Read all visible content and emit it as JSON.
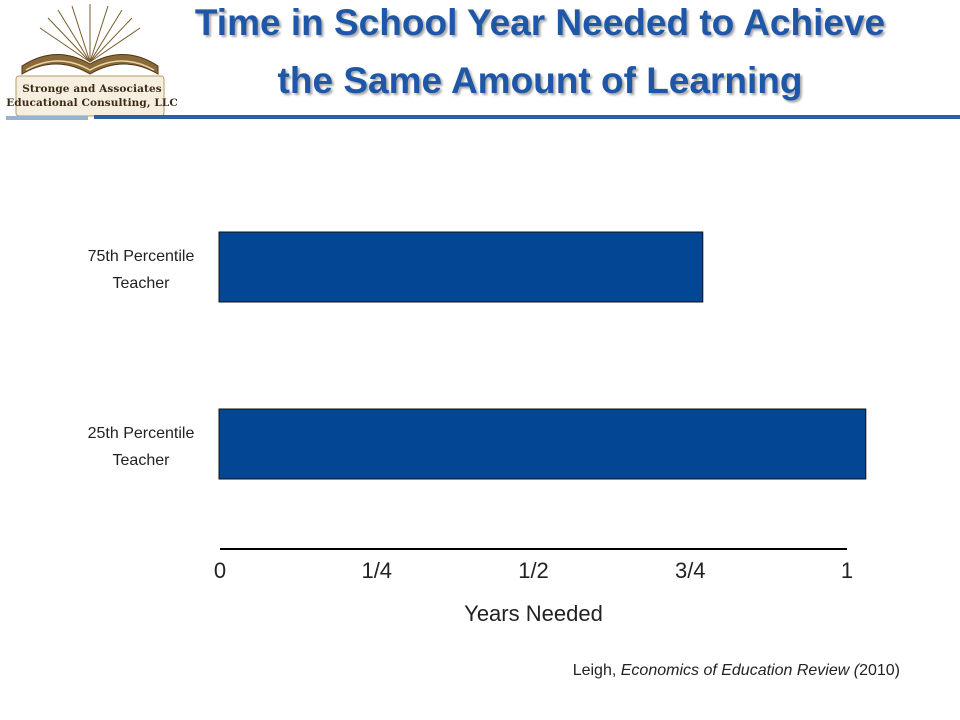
{
  "logo": {
    "line1": "Stronge and Associates",
    "line2": "Educational Consulting, LLC"
  },
  "title": {
    "line1": "Time in School Year Needed to Achieve",
    "line2": "the Same Amount of Learning"
  },
  "citation": {
    "author": "Leigh, ",
    "journal": "Economics of Education Review (",
    "year": "2010)"
  },
  "colors": {
    "bar": "#034694",
    "title": "#1f57a8",
    "header_rule": "#2f5da8"
  },
  "chart_data": {
    "type": "bar",
    "orientation": "horizontal",
    "title": "Time in School Year Needed to Achieve the Same Amount of Learning",
    "xlabel": "Years Needed",
    "ylabel": "",
    "categories": [
      [
        "75th Percentile",
        "Teacher"
      ],
      [
        "25th Percentile",
        "Teacher"
      ]
    ],
    "values": [
      0.77,
      1.03
    ],
    "xlim": [
      0,
      1
    ],
    "xticks": [
      0,
      0.25,
      0.5,
      0.75,
      1
    ],
    "xtick_labels": [
      "0",
      "1/4",
      "1/2",
      "3/4",
      "1"
    ],
    "grid": false,
    "legend": "none"
  }
}
